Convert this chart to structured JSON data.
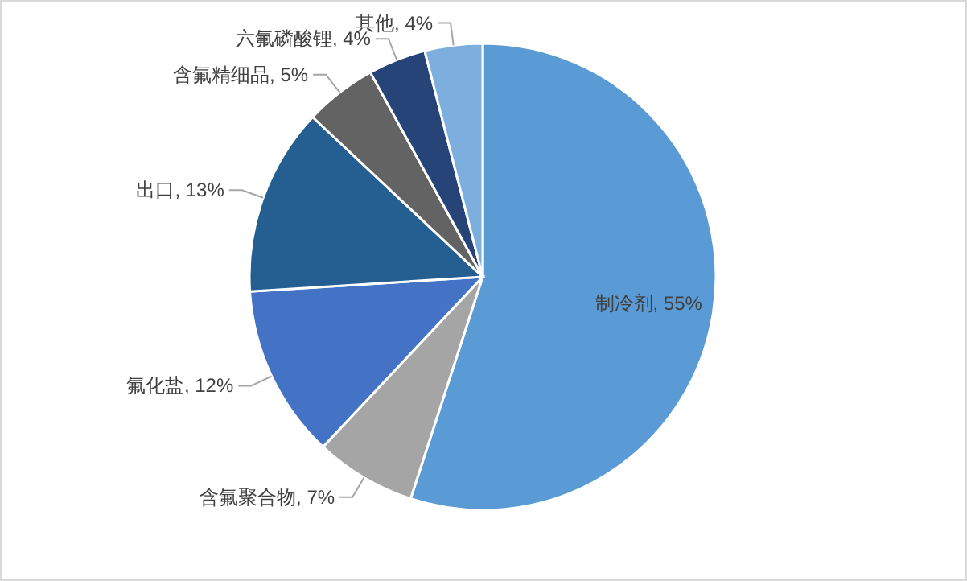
{
  "chart_data": {
    "type": "pie",
    "categories": [
      "制冷剂",
      "含氟聚合物",
      "氟化盐",
      "出口",
      "含氟精细品",
      "六氟磷酸锂",
      "其他"
    ],
    "values": [
      55,
      7,
      12,
      13,
      5,
      4,
      4
    ],
    "colors": [
      "#5b9bd5",
      "#a5a5a5",
      "#4472c4",
      "#255e91",
      "#636363",
      "#264478",
      "#7cafdd"
    ],
    "value_labels": [
      ", 55%",
      ", 7%",
      ", 12%",
      ", 13%",
      ", 5%",
      ", 4%",
      ", 4%"
    ],
    "legend": false
  }
}
